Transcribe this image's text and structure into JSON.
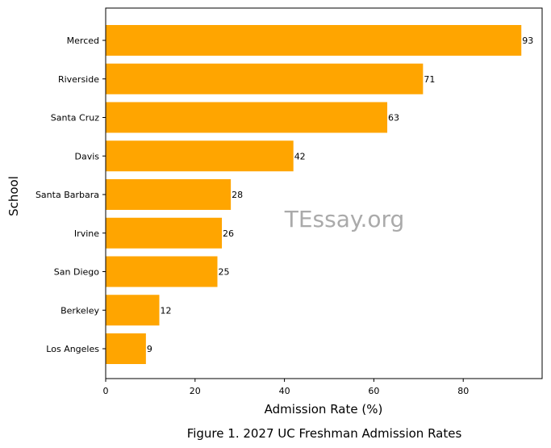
{
  "chart_data": {
    "type": "bar",
    "orientation": "horizontal",
    "categories": [
      "Merced",
      "Riverside",
      "Santa Cruz",
      "Davis",
      "Santa Barbara",
      "Irvine",
      "San Diego",
      "Berkeley",
      "Los Angeles"
    ],
    "values": [
      93,
      71,
      63,
      42,
      28,
      26,
      25,
      12,
      9
    ],
    "data_labels": [
      "93",
      "71",
      "63",
      "42",
      "28",
      "26",
      "25",
      "12",
      "9"
    ],
    "xlabel": "Admission Rate (%)",
    "ylabel": "School",
    "xlim": [
      0,
      97.65
    ],
    "xticks": [
      0,
      20,
      40,
      60,
      80
    ],
    "grid": false,
    "bar_color": "#ffa500",
    "caption": "Figure 1. 2027 UC Freshman Admission Rates",
    "watermark": "TEssay.org"
  }
}
